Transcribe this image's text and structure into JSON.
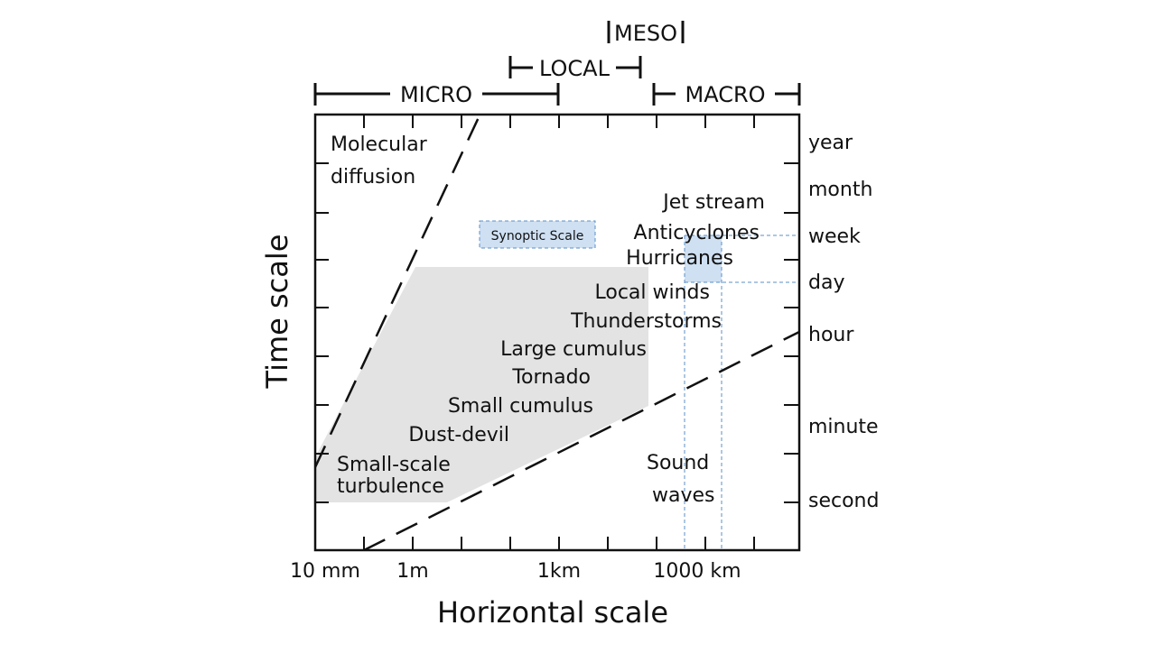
{
  "scales": {
    "micro": "MICRO",
    "local": "LOCAL",
    "meso": "MESO",
    "macro": "MACRO"
  },
  "axes": {
    "x_title": "Horizontal scale",
    "y_title": "Time scale",
    "x_ticks": [
      "10 mm",
      "1m",
      "1km",
      "1000 km"
    ],
    "y_ticks": [
      "year",
      "month",
      "week",
      "day",
      "hour",
      "minute",
      "second"
    ]
  },
  "phenomena": {
    "molecular_diffusion": [
      "Molecular",
      "diffusion"
    ],
    "jet_stream": "Jet stream",
    "anticyclones": "Anticyclones",
    "hurricanes": "Hurricanes",
    "local_winds": "Local winds",
    "thunderstorms": "Thunderstorms",
    "large_cumulus": "Large cumulus",
    "tornado": "Tornado",
    "small_cumulus": "Small cumulus",
    "dust_devil": "Dust-devil",
    "turbulence": [
      "Small-scale",
      "turbulence"
    ],
    "sound_waves": [
      "Sound",
      "waves"
    ]
  },
  "annotation": {
    "synoptic_label": "Synoptic Scale",
    "highlight_color": "#cfe0f3",
    "highlight_border": "#5b8fc7",
    "region_color": "#e3e3e3"
  }
}
